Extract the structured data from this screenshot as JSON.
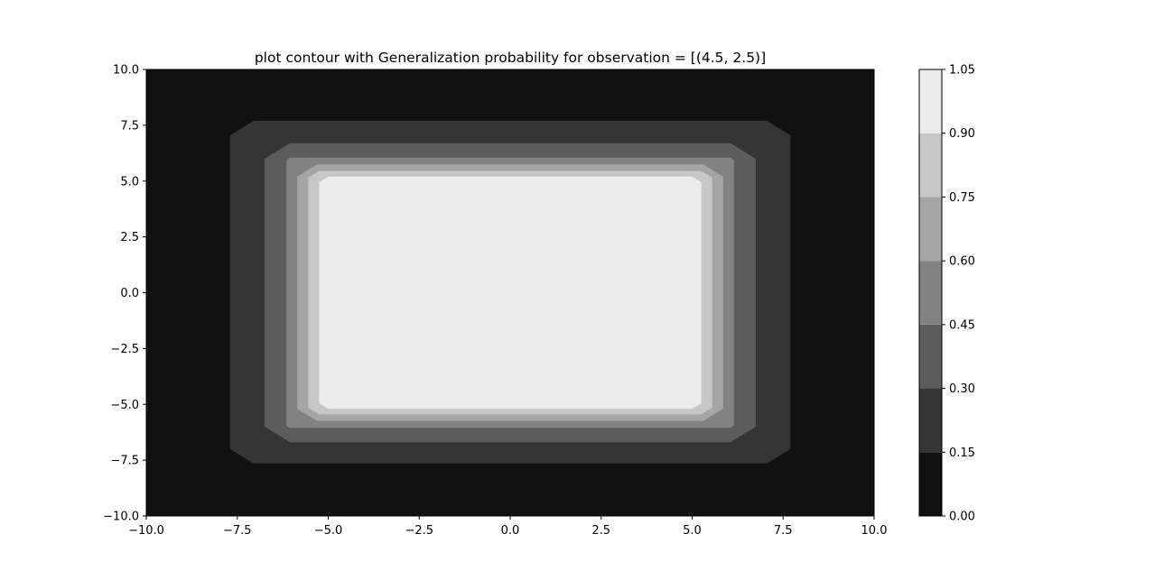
{
  "chart_data": {
    "type": "contour",
    "title": "plot contour with Generalization probability for observation = [(4.5, 2.5)]",
    "xlabel": "",
    "ylabel": "",
    "xlim": [
      -10,
      10
    ],
    "ylim": [
      -10,
      10
    ],
    "x_ticks": [
      "−10.0",
      "−7.5",
      "−5.0",
      "−2.5",
      "0.0",
      "2.5",
      "5.0",
      "7.5",
      "10.0"
    ],
    "x_tick_values": [
      -10,
      -7.5,
      -5,
      -2.5,
      0,
      2.5,
      5,
      7.5,
      10
    ],
    "y_ticks": [
      "−10.0",
      "−7.5",
      "−5.0",
      "−2.5",
      "0.0",
      "2.5",
      "5.0",
      "7.5",
      "10.0"
    ],
    "y_tick_values": [
      -10,
      -7.5,
      -5,
      -2.5,
      0,
      2.5,
      5,
      7.5,
      10
    ],
    "grid": false,
    "colorbar": {
      "ticks": [
        "0.00",
        "0.15",
        "0.30",
        "0.45",
        "0.60",
        "0.75",
        "0.90",
        "1.05"
      ],
      "tick_values": [
        0,
        0.15,
        0.3,
        0.45,
        0.6,
        0.75,
        0.9,
        1.05
      ]
    },
    "levels": [
      {
        "range": [
          0.0,
          0.15
        ],
        "color": "#111111",
        "x": [
          -10,
          10
        ],
        "y": [
          -10,
          10
        ],
        "chamfer": 0
      },
      {
        "range": [
          0.15,
          0.3
        ],
        "color": "#353535",
        "x": [
          -7.7,
          7.7
        ],
        "y": [
          -7.65,
          7.7
        ],
        "chamfer": 0.65
      },
      {
        "range": [
          0.3,
          0.45
        ],
        "color": "#5c5c5c",
        "x": [
          -6.75,
          6.75
        ],
        "y": [
          -6.7,
          6.7
        ],
        "chamfer": 0.7
      },
      {
        "range": [
          0.45,
          0.6
        ],
        "color": "#828282",
        "x": [
          -6.15,
          6.15
        ],
        "y": [
          -6.05,
          6.05
        ],
        "chamfer": 0.1
      },
      {
        "range": [
          0.6,
          0.75
        ],
        "color": "#a5a5a5",
        "x": [
          -5.85,
          5.85
        ],
        "y": [
          -5.75,
          5.75
        ],
        "chamfer": 0.55
      },
      {
        "range": [
          0.75,
          0.9
        ],
        "color": "#c7c7c7",
        "x": [
          -5.55,
          5.55
        ],
        "y": [
          -5.45,
          5.45
        ],
        "chamfer": 0.3
      },
      {
        "range": [
          0.9,
          1.05
        ],
        "color": "#ececec",
        "x": [
          -5.25,
          5.25
        ],
        "y": [
          -5.2,
          5.2
        ],
        "chamfer": 0.25
      }
    ]
  }
}
